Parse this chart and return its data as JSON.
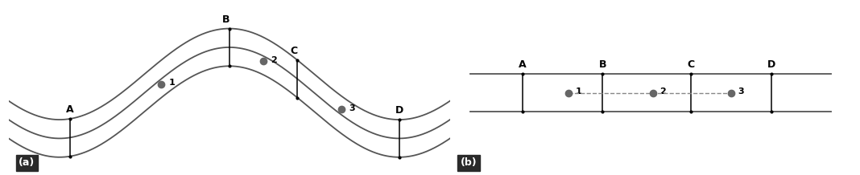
{
  "fig_width": 10.68,
  "fig_height": 2.18,
  "dpi": 100,
  "bg_color": "#ffffff",
  "border_color": "#aaaaaa",
  "curve_color": "#555555",
  "label_color": "#000000",
  "dot_color": "#666666",
  "line_color": "#000000",
  "panel_a_label": "(a)",
  "panel_b_label": "(b)",
  "points_labels": [
    "A",
    "B",
    "C",
    "D"
  ],
  "sample_labels": [
    "1",
    "2",
    "3"
  ],
  "label_box_color": "#2a2a2a"
}
